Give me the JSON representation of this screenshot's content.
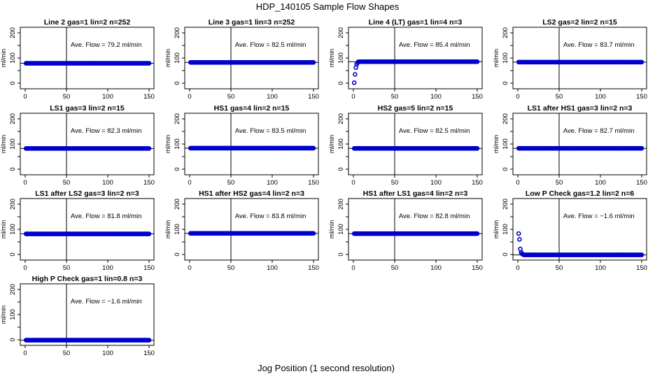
{
  "figure": {
    "title": "HDP_140105  Sample Flow Shapes",
    "xlabel": "Jog Position (1 second resolution)",
    "ylabel": "ml/min"
  },
  "colors": {
    "points": "#0000cc",
    "axes": "#000000",
    "background": "#ffffff"
  },
  "chart_data": [
    {
      "type": "scatter",
      "title": "Line 2 gas=1 lin=2 n=252",
      "annotation": "Ave. Flow =  79.2  ml/min",
      "shape": "flat",
      "level": 79.2,
      "mean": 79.2,
      "x_range": [
        1,
        150
      ],
      "xlim": [
        0,
        150
      ],
      "ylim": [
        0,
        200
      ],
      "xticks": [
        0,
        50,
        100,
        150
      ],
      "yticks": [
        0,
        100,
        200
      ],
      "yticks_minor": [
        50,
        150
      ],
      "vline": 50
    },
    {
      "type": "scatter",
      "title": "Line 3 gas=1 lin=3 n=252",
      "annotation": "Ave. Flow =  82.5  ml/min",
      "shape": "flat",
      "level": 82.5,
      "mean": 82.5,
      "x_range": [
        1,
        150
      ],
      "xlim": [
        0,
        150
      ],
      "ylim": [
        0,
        200
      ],
      "xticks": [
        0,
        50,
        100,
        150
      ],
      "yticks": [
        0,
        100,
        200
      ],
      "yticks_minor": [
        50,
        150
      ],
      "vline": 50
    },
    {
      "type": "scatter",
      "title": "Line 4 (LT) gas=1 lin=4 n=3",
      "annotation": "Ave. Flow =  85.4  ml/min",
      "shape": "rise",
      "level": 85.4,
      "mean": 85.4,
      "x_range": [
        1,
        150
      ],
      "start_points": [
        [
          1,
          2
        ],
        [
          2,
          35
        ],
        [
          3,
          62
        ],
        [
          4,
          75
        ],
        [
          5,
          81
        ]
      ],
      "xlim": [
        0,
        150
      ],
      "ylim": [
        0,
        200
      ],
      "xticks": [
        0,
        50,
        100,
        150
      ],
      "yticks": [
        0,
        100,
        200
      ],
      "yticks_minor": [
        50,
        150
      ],
      "vline": 50
    },
    {
      "type": "scatter",
      "title": "LS2 gas=2 lin=2 n=15",
      "annotation": "Ave. Flow =  83.7  ml/min",
      "shape": "flat",
      "level": 83.7,
      "mean": 83.7,
      "x_range": [
        1,
        150
      ],
      "xlim": [
        0,
        150
      ],
      "ylim": [
        0,
        200
      ],
      "xticks": [
        0,
        50,
        100,
        150
      ],
      "yticks": [
        0,
        100,
        200
      ],
      "yticks_minor": [
        50,
        150
      ],
      "vline": 50
    },
    {
      "type": "scatter",
      "title": "LS1 gas=3 lin=2 n=15",
      "annotation": "Ave. Flow =  82.3  ml/min",
      "shape": "flat",
      "level": 82.3,
      "mean": 82.3,
      "x_range": [
        1,
        150
      ],
      "xlim": [
        0,
        150
      ],
      "ylim": [
        0,
        200
      ],
      "xticks": [
        0,
        50,
        100,
        150
      ],
      "yticks": [
        0,
        100,
        200
      ],
      "yticks_minor": [
        50,
        150
      ],
      "vline": 50
    },
    {
      "type": "scatter",
      "title": "HS1 gas=4 lin=2 n=15",
      "annotation": "Ave. Flow =  83.5  ml/min",
      "shape": "flat",
      "level": 83.5,
      "mean": 83.5,
      "x_range": [
        1,
        150
      ],
      "xlim": [
        0,
        150
      ],
      "ylim": [
        0,
        200
      ],
      "xticks": [
        0,
        50,
        100,
        150
      ],
      "yticks": [
        0,
        100,
        200
      ],
      "yticks_minor": [
        50,
        150
      ],
      "vline": 50
    },
    {
      "type": "scatter",
      "title": "HS2 gas=5 lin=2 n=15",
      "annotation": "Ave. Flow =  82.5  ml/min",
      "shape": "flat",
      "level": 82.5,
      "mean": 82.5,
      "x_range": [
        1,
        150
      ],
      "xlim": [
        0,
        150
      ],
      "ylim": [
        0,
        200
      ],
      "xticks": [
        0,
        50,
        100,
        150
      ],
      "yticks": [
        0,
        100,
        200
      ],
      "yticks_minor": [
        50,
        150
      ],
      "vline": 50
    },
    {
      "type": "scatter",
      "title": "LS1 after HS1 gas=3 lin=2 n=3",
      "annotation": "Ave. Flow =  82.7  ml/min",
      "shape": "flat",
      "level": 82.7,
      "mean": 82.7,
      "x_range": [
        1,
        150
      ],
      "xlim": [
        0,
        150
      ],
      "ylim": [
        0,
        200
      ],
      "xticks": [
        0,
        50,
        100,
        150
      ],
      "yticks": [
        0,
        100,
        200
      ],
      "yticks_minor": [
        50,
        150
      ],
      "vline": 50
    },
    {
      "type": "scatter",
      "title": "LS1 after LS2 gas=3 lin=2 n=3",
      "annotation": "Ave. Flow =  81.8  ml/min",
      "shape": "flat",
      "level": 81.8,
      "mean": 81.8,
      "x_range": [
        1,
        150
      ],
      "xlim": [
        0,
        150
      ],
      "ylim": [
        0,
        200
      ],
      "xticks": [
        0,
        50,
        100,
        150
      ],
      "yticks": [
        0,
        100,
        200
      ],
      "yticks_minor": [
        50,
        150
      ],
      "vline": 50
    },
    {
      "type": "scatter",
      "title": "HS1 after HS2 gas=4 lin=2 n=3",
      "annotation": "Ave. Flow =  83.8  ml/min",
      "shape": "flat",
      "level": 83.8,
      "mean": 83.8,
      "x_range": [
        1,
        150
      ],
      "xlim": [
        0,
        150
      ],
      "ylim": [
        0,
        200
      ],
      "xticks": [
        0,
        50,
        100,
        150
      ],
      "yticks": [
        0,
        100,
        200
      ],
      "yticks_minor": [
        50,
        150
      ],
      "vline": 50
    },
    {
      "type": "scatter",
      "title": "HS1 after LS1 gas=4 lin=2 n=3",
      "annotation": "Ave. Flow =  82.8  ml/min",
      "shape": "flat",
      "level": 82.8,
      "mean": 82.8,
      "x_range": [
        1,
        150
      ],
      "xlim": [
        0,
        150
      ],
      "ylim": [
        0,
        200
      ],
      "xticks": [
        0,
        50,
        100,
        150
      ],
      "yticks": [
        0,
        100,
        200
      ],
      "yticks_minor": [
        50,
        150
      ],
      "vline": 50
    },
    {
      "type": "scatter",
      "title": "Low P Check gas=1.2 lin=2 n=6",
      "annotation": "Ave. Flow =  −1.6  ml/min",
      "shape": "decay",
      "level": -1.6,
      "mean": -1.6,
      "x_range": [
        1,
        150
      ],
      "start_points": [
        [
          1,
          83
        ],
        [
          2,
          60
        ],
        [
          3,
          22
        ],
        [
          4,
          8
        ],
        [
          5,
          3
        ],
        [
          6,
          1
        ]
      ],
      "xlim": [
        0,
        150
      ],
      "ylim": [
        0,
        200
      ],
      "xticks": [
        0,
        50,
        100,
        150
      ],
      "yticks": [
        0,
        100,
        200
      ],
      "yticks_minor": [
        50,
        150
      ],
      "vline": 50
    },
    {
      "type": "scatter",
      "title": "High P Check gas=1 lin=0.8 n=3",
      "annotation": "Ave. Flow =  −1.6  ml/min",
      "shape": "flat",
      "level": -1.6,
      "mean": -1.6,
      "x_range": [
        1,
        150
      ],
      "xlim": [
        0,
        150
      ],
      "ylim": [
        0,
        200
      ],
      "xticks": [
        0,
        50,
        100,
        150
      ],
      "yticks": [
        0,
        100,
        200
      ],
      "yticks_minor": [
        50,
        150
      ],
      "vline": 50
    }
  ]
}
